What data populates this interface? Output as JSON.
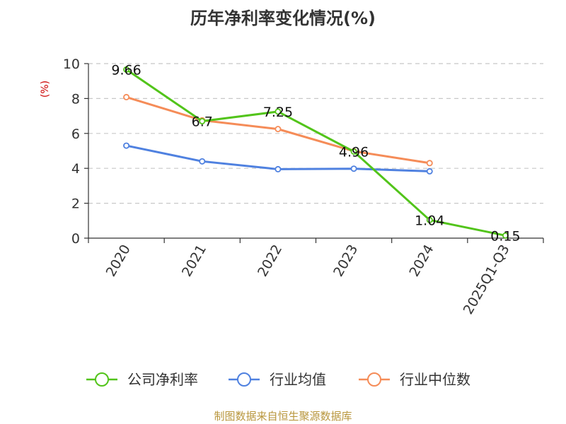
{
  "chart_data": {
    "type": "line",
    "title": "历年净利率变化情况(%)",
    "ylabel": "(%)",
    "ylim": [
      0,
      10
    ],
    "yticks": [
      0,
      2,
      4,
      6,
      8,
      10
    ],
    "categories": [
      "2020",
      "2021",
      "2022",
      "2023",
      "2024",
      "2025Q1-Q3"
    ],
    "grid": true,
    "legend_position": "bottom",
    "series": [
      {
        "name": "公司净利率",
        "color": "#52c41a",
        "values": [
          9.66,
          6.7,
          7.25,
          4.96,
          1.04,
          0.15
        ],
        "labels": [
          "9.66",
          "6.7",
          "7.25",
          "4.96",
          "1.04",
          "0.15"
        ]
      },
      {
        "name": "行业均值",
        "color": "#4f81e0",
        "values": [
          5.3,
          4.4,
          3.95,
          3.98,
          3.83,
          null
        ]
      },
      {
        "name": "行业中位数",
        "color": "#f58c58",
        "values": [
          8.08,
          6.75,
          6.25,
          4.98,
          4.3,
          null
        ]
      }
    ]
  },
  "source": "制图数据来自恒生聚源数据库"
}
